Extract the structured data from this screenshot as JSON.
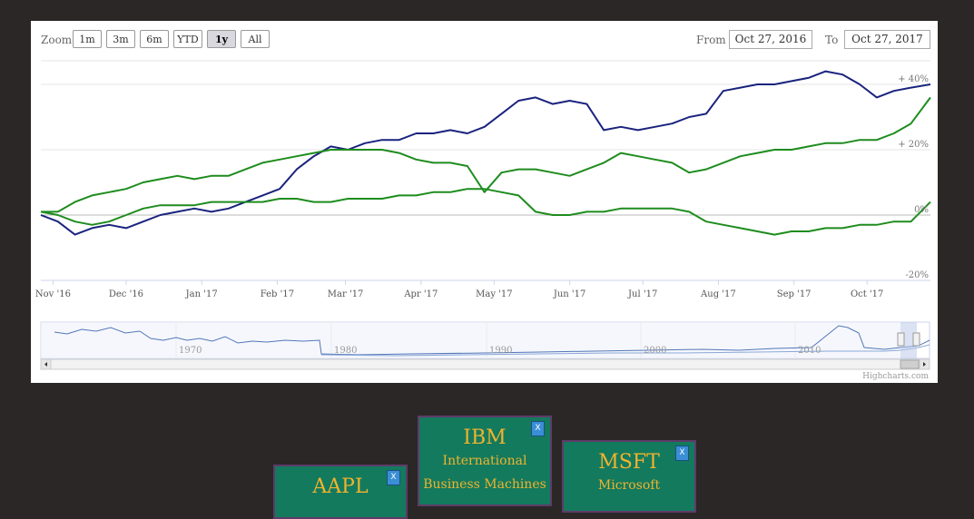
{
  "toolbar": {
    "zoom_label": "Zoom",
    "buttons": [
      "1m",
      "3m",
      "6m",
      "YTD",
      "1y",
      "All"
    ],
    "active_button": "1y",
    "from_label": "From",
    "from_value": "Oct 27, 2016",
    "to_label": "To",
    "to_value": "Oct 27, 2017"
  },
  "credit": "Highcharts.com",
  "chart_data": {
    "type": "line",
    "xaxis_ticks": [
      "Nov '16",
      "Dec '16",
      "Jan '17",
      "Feb '17",
      "Mar '17",
      "Apr '17",
      "May '17",
      "Jun '17",
      "Jul '17",
      "Aug '17",
      "Sep '17",
      "Oct '17"
    ],
    "yaxis_ticks": [
      "+ 40%",
      "+ 20%",
      "0%",
      "-20%"
    ],
    "ylim": [
      -20,
      40
    ],
    "grid": true,
    "series": [
      {
        "color": "#1a237e",
        "x": [
          "2016-10-27",
          "2016-11-03",
          "2016-11-10",
          "2016-11-17",
          "2016-11-24",
          "2016-12-01",
          "2016-12-08",
          "2016-12-15",
          "2016-12-22",
          "2016-12-29",
          "2017-01-05",
          "2017-01-12",
          "2017-01-19",
          "2017-01-26",
          "2017-02-02",
          "2017-02-09",
          "2017-02-16",
          "2017-02-23",
          "2017-03-02",
          "2017-03-09",
          "2017-03-16",
          "2017-03-23",
          "2017-03-30",
          "2017-04-06",
          "2017-04-13",
          "2017-04-20",
          "2017-04-27",
          "2017-05-04",
          "2017-05-11",
          "2017-05-18",
          "2017-05-25",
          "2017-06-01",
          "2017-06-08",
          "2017-06-15",
          "2017-06-22",
          "2017-06-29",
          "2017-07-06",
          "2017-07-13",
          "2017-07-20",
          "2017-07-27",
          "2017-08-03",
          "2017-08-10",
          "2017-08-17",
          "2017-08-24",
          "2017-08-31",
          "2017-09-07",
          "2017-09-14",
          "2017-09-21",
          "2017-09-28",
          "2017-10-05",
          "2017-10-12",
          "2017-10-19",
          "2017-10-27"
        ],
        "values": [
          0,
          -2,
          -6,
          -4,
          -3,
          -4,
          -2,
          0,
          1,
          2,
          1,
          2,
          4,
          6,
          8,
          14,
          18,
          21,
          20,
          22,
          23,
          23,
          25,
          25,
          26,
          25,
          27,
          31,
          35,
          36,
          34,
          35,
          34,
          26,
          27,
          26,
          27,
          28,
          30,
          31,
          38,
          39,
          40,
          40,
          41,
          42,
          44,
          43,
          40,
          36,
          38,
          39,
          40
        ]
      },
      {
        "color": "#1e8c1e",
        "x": [
          "2016-10-27",
          "2016-11-03",
          "2016-11-10",
          "2016-11-17",
          "2016-11-24",
          "2016-12-01",
          "2016-12-08",
          "2016-12-15",
          "2016-12-22",
          "2016-12-29",
          "2017-01-05",
          "2017-01-12",
          "2017-01-19",
          "2017-01-26",
          "2017-02-02",
          "2017-02-09",
          "2017-02-16",
          "2017-02-23",
          "2017-03-02",
          "2017-03-09",
          "2017-03-16",
          "2017-03-23",
          "2017-03-30",
          "2017-04-06",
          "2017-04-13",
          "2017-04-20",
          "2017-04-27",
          "2017-05-04",
          "2017-05-11",
          "2017-05-18",
          "2017-05-25",
          "2017-06-01",
          "2017-06-08",
          "2017-06-15",
          "2017-06-22",
          "2017-06-29",
          "2017-07-06",
          "2017-07-13",
          "2017-07-20",
          "2017-07-27",
          "2017-08-03",
          "2017-08-10",
          "2017-08-17",
          "2017-08-24",
          "2017-08-31",
          "2017-09-07",
          "2017-09-14",
          "2017-09-21",
          "2017-09-28",
          "2017-10-05",
          "2017-10-12",
          "2017-10-19",
          "2017-10-27"
        ],
        "values": [
          1,
          1,
          4,
          6,
          7,
          8,
          10,
          11,
          12,
          11,
          12,
          12,
          14,
          16,
          17,
          18,
          19,
          20,
          20,
          20,
          20,
          19,
          17,
          16,
          16,
          15,
          7,
          13,
          14,
          14,
          13,
          12,
          14,
          16,
          19,
          18,
          17,
          16,
          13,
          14,
          16,
          18,
          19,
          20,
          20,
          21,
          22,
          22,
          23,
          23,
          25,
          28,
          36
        ]
      },
      {
        "color": "#1e8c1e",
        "x": [
          "2016-10-27",
          "2016-11-03",
          "2016-11-10",
          "2016-11-17",
          "2016-11-24",
          "2016-12-01",
          "2016-12-08",
          "2016-12-15",
          "2016-12-22",
          "2016-12-29",
          "2017-01-05",
          "2017-01-12",
          "2017-01-19",
          "2017-01-26",
          "2017-02-02",
          "2017-02-09",
          "2017-02-16",
          "2017-02-23",
          "2017-03-02",
          "2017-03-09",
          "2017-03-16",
          "2017-03-23",
          "2017-03-30",
          "2017-04-06",
          "2017-04-13",
          "2017-04-20",
          "2017-04-27",
          "2017-05-04",
          "2017-05-11",
          "2017-05-18",
          "2017-05-25",
          "2017-06-01",
          "2017-06-08",
          "2017-06-15",
          "2017-06-22",
          "2017-06-29",
          "2017-07-06",
          "2017-07-13",
          "2017-07-20",
          "2017-07-27",
          "2017-08-03",
          "2017-08-10",
          "2017-08-17",
          "2017-08-24",
          "2017-08-31",
          "2017-09-07",
          "2017-09-14",
          "2017-09-21",
          "2017-09-28",
          "2017-10-05",
          "2017-10-12",
          "2017-10-19",
          "2017-10-27"
        ],
        "values": [
          1,
          0,
          -2,
          -3,
          -2,
          0,
          2,
          3,
          3,
          3,
          4,
          4,
          4,
          4,
          5,
          5,
          4,
          4,
          5,
          5,
          5,
          6,
          6,
          7,
          7,
          8,
          8,
          7,
          6,
          1,
          0,
          0,
          1,
          1,
          2,
          2,
          2,
          2,
          1,
          -2,
          -3,
          -4,
          -5,
          -6,
          -5,
          -5,
          -4,
          -4,
          -3,
          -3,
          -2,
          -2,
          4
        ]
      }
    ],
    "navigator_ticks": [
      "1970",
      "1980",
      "1990",
      "2000",
      "2010"
    ]
  },
  "cards": [
    {
      "symbol": "AAPL",
      "name": [],
      "close": "X"
    },
    {
      "symbol": "IBM",
      "name": [
        "International",
        "Business Machines"
      ],
      "close": "X"
    },
    {
      "symbol": "MSFT",
      "name": [
        "Microsoft"
      ],
      "close": "X"
    }
  ]
}
